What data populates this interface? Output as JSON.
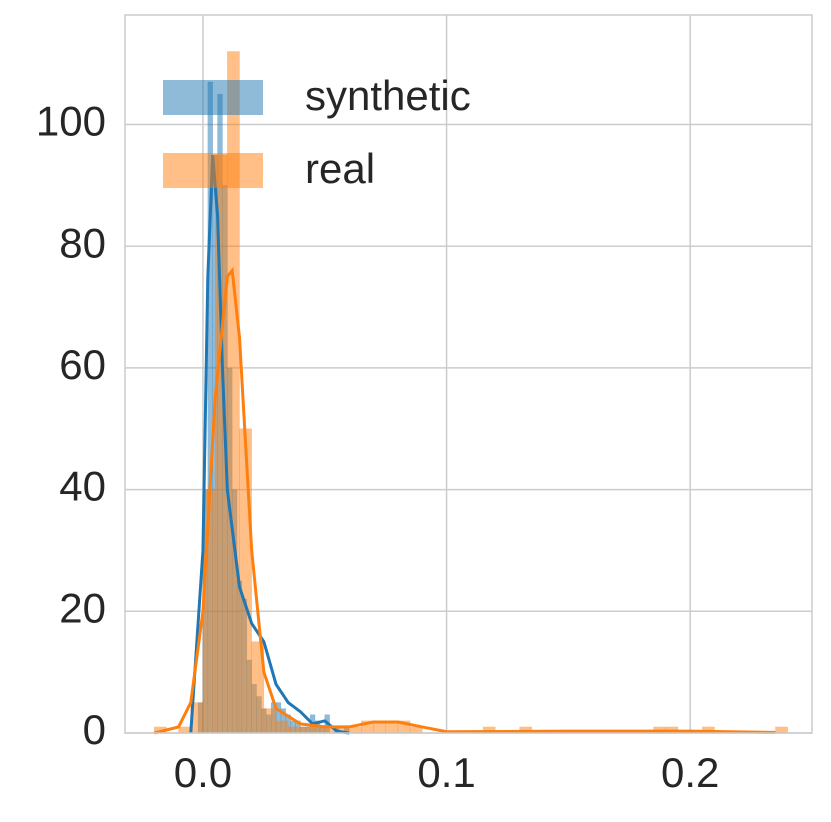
{
  "chart_data": {
    "type": "histogram",
    "xlim": [
      -0.032,
      0.25
    ],
    "ylim": [
      0,
      118
    ],
    "xticks": [
      {
        "value": 0,
        "label": "0.0"
      },
      0.1,
      0.2
    ],
    "yticks": [
      0,
      20,
      40,
      60,
      80,
      100
    ],
    "grid": true,
    "legend": "upper left",
    "series": [
      {
        "name": "synthetic",
        "color": "#1f77b4",
        "bins": [
          -0.002,
          0,
          0.002,
          0.004,
          0.006,
          0.008,
          0.01,
          0.012,
          0.014,
          0.016,
          0.018,
          0.02,
          0.022,
          0.024,
          0.026,
          0.028,
          0.03,
          0.032,
          0.034,
          0.036,
          0.038,
          0.04,
          0.042,
          0.044,
          0.046,
          0.048,
          0.05,
          0.052,
          0.054,
          0.056,
          0.058,
          0.06
        ],
        "values": [
          5,
          40,
          107,
          95,
          105,
          90,
          60,
          40,
          25,
          22,
          12,
          8,
          6,
          4,
          3,
          5,
          5,
          4,
          3,
          2,
          2,
          1,
          1,
          3,
          2,
          1,
          3,
          0,
          1,
          0,
          1
        ],
        "kde": {
          "x": [
            -0.005,
            0,
            0.002,
            0.004,
            0.006,
            0.008,
            0.01,
            0.015,
            0.02,
            0.025,
            0.03,
            0.035,
            0.04,
            0.045,
            0.05,
            0.055,
            0.06
          ],
          "values": [
            0,
            30,
            75,
            95,
            85,
            60,
            40,
            24,
            18,
            15,
            8,
            5,
            3.5,
            1.5,
            2,
            0.3,
            0
          ]
        }
      },
      {
        "name": "real",
        "color": "#ff7f0e",
        "bins": [
          -0.02,
          -0.015,
          -0.01,
          -0.005,
          0,
          0.005,
          0.01,
          0.015,
          0.02,
          0.025,
          0.03,
          0.035,
          0.04,
          0.045,
          0.05,
          0.055,
          0.06,
          0.065,
          0.07,
          0.075,
          0.08,
          0.085,
          0.09,
          0.095,
          0.1,
          0.105,
          0.11,
          0.115,
          0.12,
          0.125,
          0.13,
          0.135,
          0.14,
          0.145,
          0.15,
          0.155,
          0.16,
          0.165,
          0.17,
          0.175,
          0.18,
          0.185,
          0.19,
          0.195,
          0.2,
          0.205,
          0.21,
          0.215,
          0.22,
          0.225,
          0.23,
          0.235,
          0.24
        ],
        "values": [
          1,
          0,
          1,
          5,
          40,
          95,
          112,
          50,
          15,
          4,
          2,
          1,
          1,
          1,
          1,
          1,
          1,
          2,
          2,
          2,
          2,
          1,
          0,
          0,
          0,
          0,
          0,
          1,
          0,
          0,
          1,
          0,
          0,
          0,
          0,
          0,
          0,
          0,
          0,
          0,
          0,
          1,
          1,
          0,
          0,
          1,
          0,
          0,
          0,
          0,
          0,
          1
        ],
        "kde": {
          "x": [
            -0.02,
            -0.01,
            -0.005,
            0,
            0.005,
            0.01,
            0.012,
            0.015,
            0.02,
            0.025,
            0.03,
            0.04,
            0.05,
            0.06,
            0.07,
            0.08,
            0.09,
            0.1,
            0.15,
            0.2,
            0.235
          ],
          "values": [
            0,
            1,
            5,
            20,
            55,
            75,
            76,
            65,
            30,
            10,
            4,
            1.5,
            1,
            1,
            1.8,
            1.8,
            1,
            0.2,
            0.3,
            0.3,
            0.1
          ]
        }
      }
    ]
  }
}
